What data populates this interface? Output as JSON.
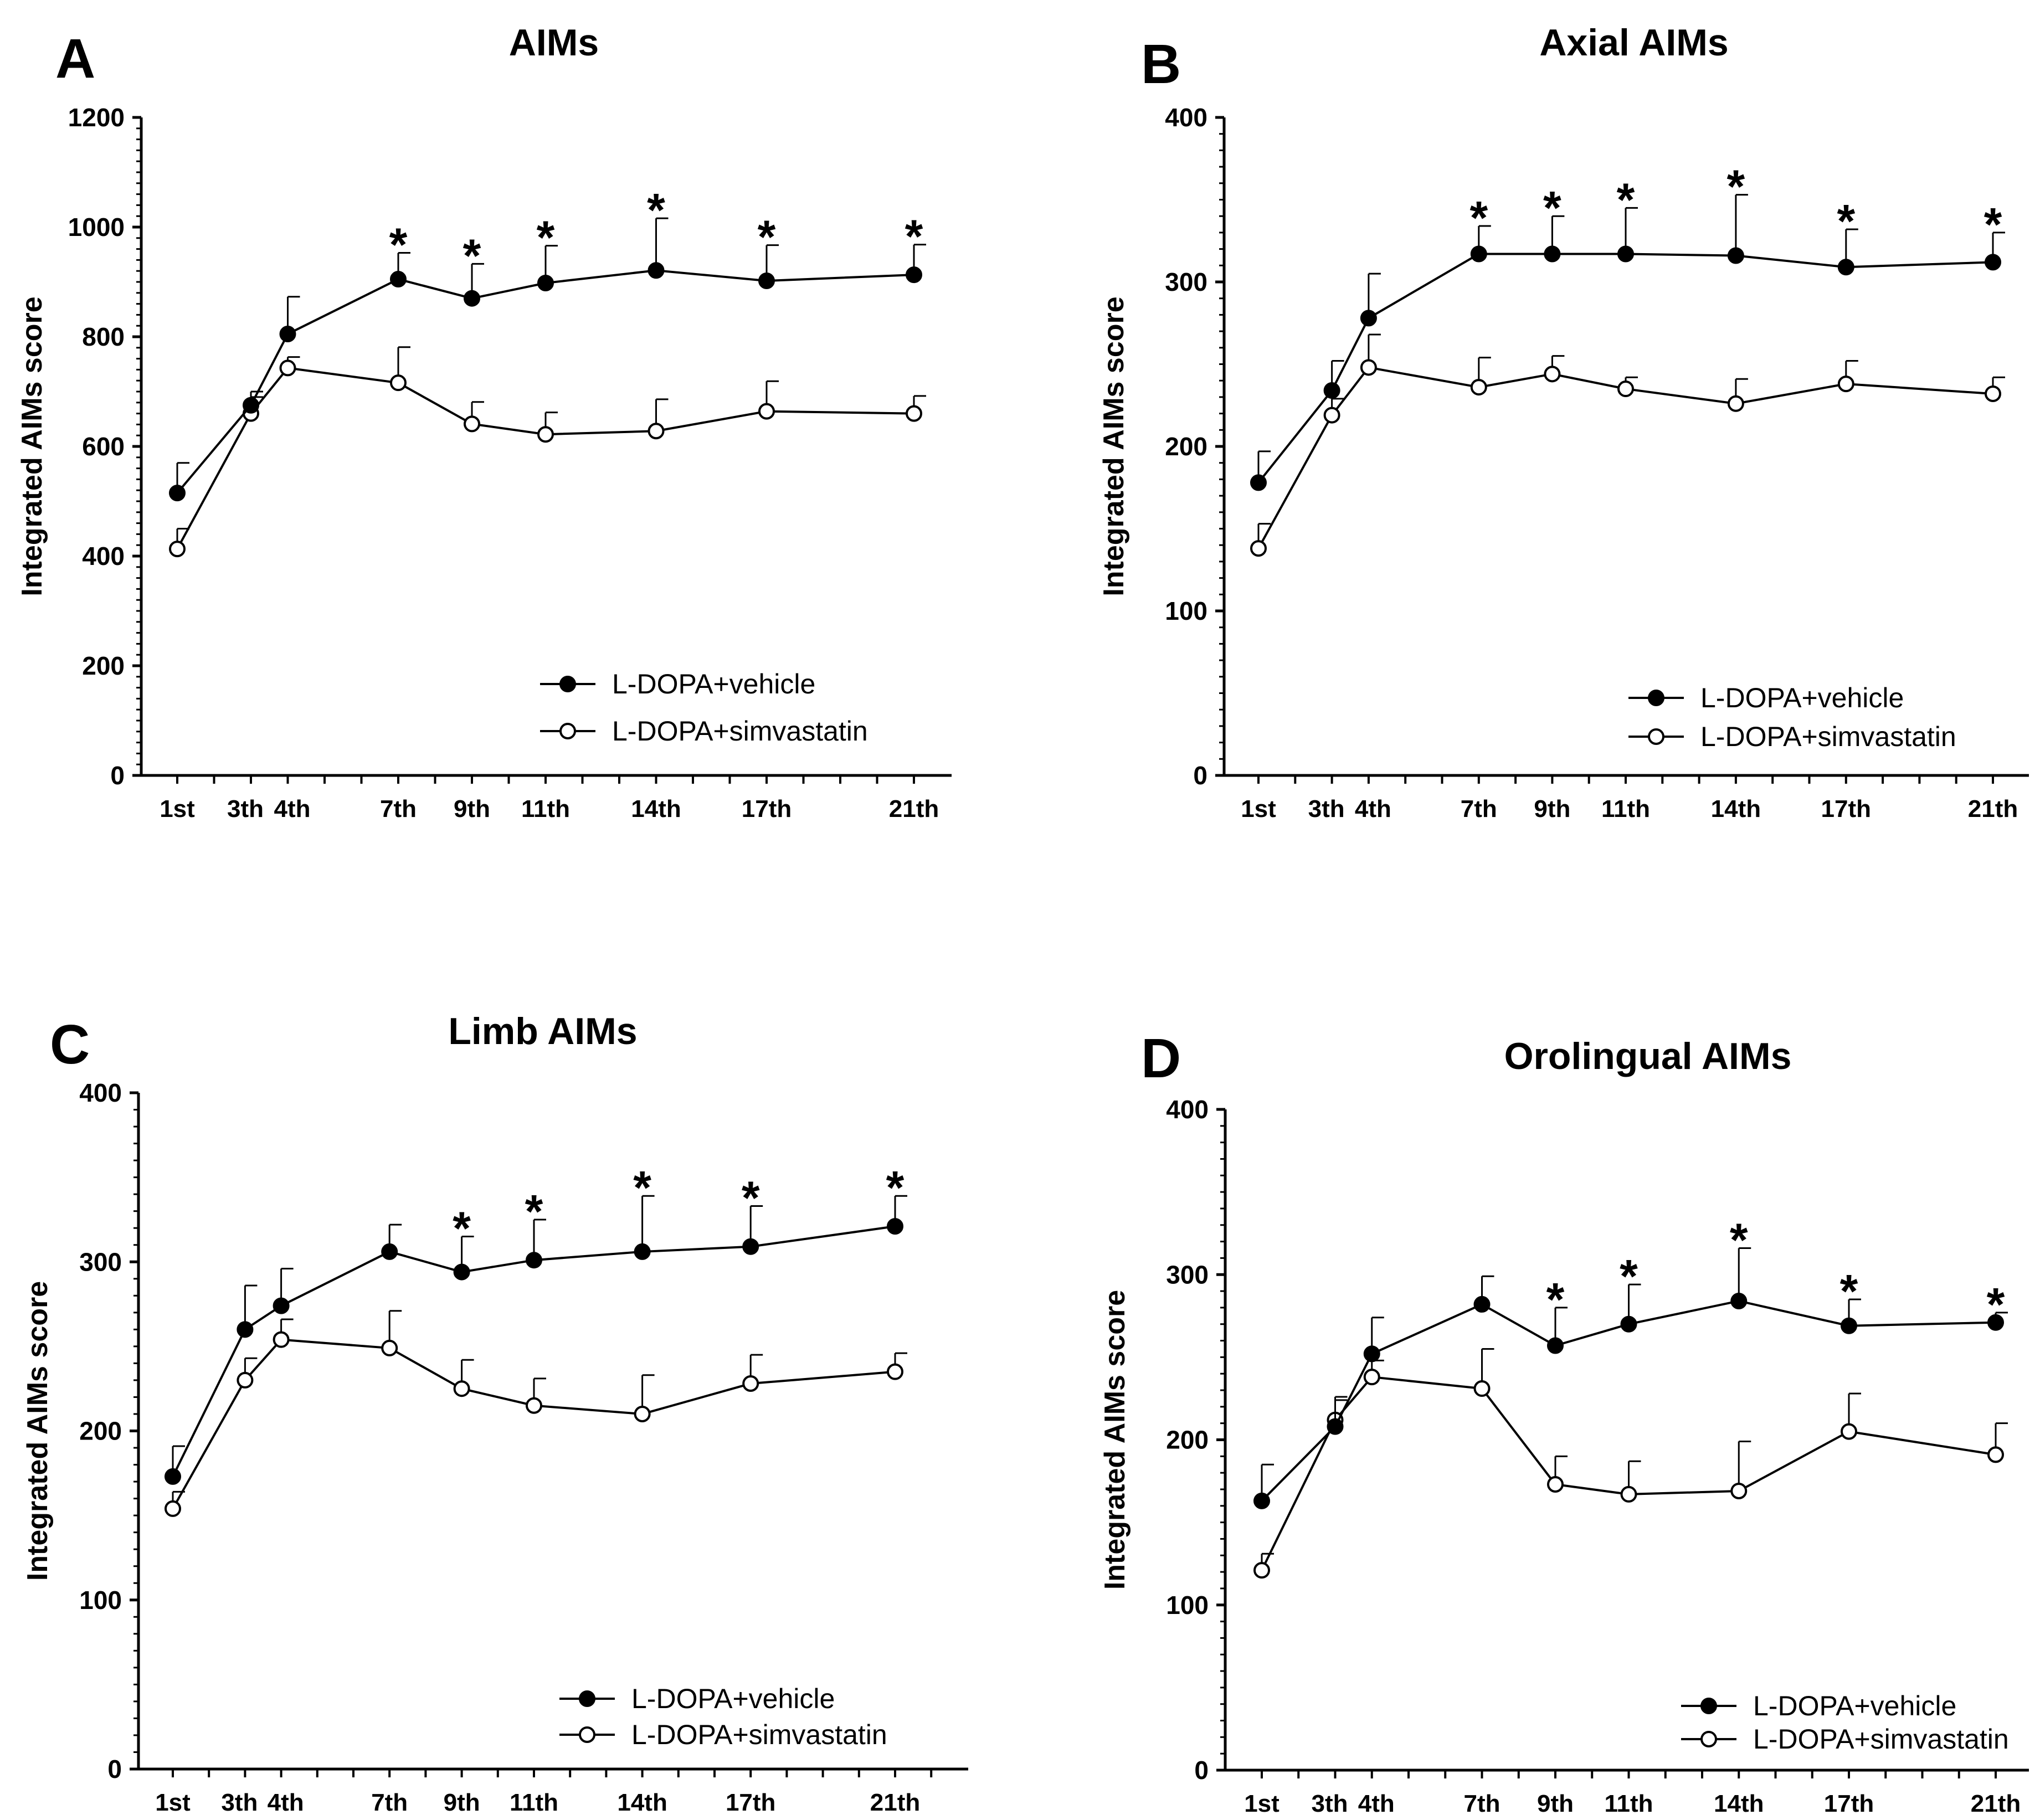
{
  "figure": {
    "panels": [
      "A",
      "B",
      "C",
      "D"
    ]
  },
  "chart_data": [
    {
      "panel": "A",
      "type": "line",
      "title": "AIMs",
      "ylabel": "Integrated AIMs score",
      "xlabel": "",
      "ylim": [
        0,
        1200
      ],
      "yticks": [
        0,
        200,
        400,
        600,
        800,
        1000,
        1200
      ],
      "x": [
        1,
        3,
        4,
        7,
        9,
        11,
        14,
        17,
        21
      ],
      "xtick_labels": [
        "1st",
        "3th",
        "4th",
        "7th",
        "9th",
        "11th",
        "14th",
        "17th",
        "21th"
      ],
      "legend_position": "bottom-right",
      "series": [
        {
          "name": "L-DOPA+vehicle",
          "marker": "filled",
          "values": [
            515,
            675,
            805,
            905,
            870,
            898,
            921,
            902,
            913
          ],
          "errors": [
            55,
            25,
            68,
            48,
            63,
            68,
            95,
            65,
            55
          ]
        },
        {
          "name": "L-DOPA+simvastatin",
          "marker": "open",
          "values": [
            413,
            660,
            743,
            716,
            641,
            622,
            628,
            664,
            660
          ],
          "errors": [
            37,
            30,
            20,
            65,
            40,
            40,
            58,
            55,
            32
          ]
        }
      ],
      "significance": [
        false,
        false,
        false,
        true,
        true,
        true,
        true,
        true,
        true
      ],
      "annotation": "*"
    },
    {
      "panel": "B",
      "type": "line",
      "title": "Axial AIMs",
      "ylabel": "Integrated AIMs score",
      "xlabel": "",
      "ylim": [
        0,
        400
      ],
      "yticks": [
        0,
        100,
        200,
        300,
        400
      ],
      "x": [
        1,
        3,
        4,
        7,
        9,
        11,
        14,
        17,
        21
      ],
      "xtick_labels": [
        "1st",
        "3th",
        "4th",
        "7th",
        "9th",
        "11th",
        "14th",
        "17th",
        "21th"
      ],
      "legend_position": "bottom-right",
      "series": [
        {
          "name": "L-DOPA+vehicle",
          "marker": "filled",
          "values": [
            178,
            234,
            278,
            317,
            317,
            317,
            316,
            309,
            312
          ],
          "errors": [
            19,
            18,
            27,
            17,
            23,
            28,
            37,
            23,
            18
          ]
        },
        {
          "name": "L-DOPA+simvastatin",
          "marker": "open",
          "values": [
            138,
            219,
            248,
            236,
            244,
            235,
            226,
            238,
            232
          ],
          "errors": [
            15,
            10,
            20,
            18,
            11,
            7,
            15,
            14,
            10
          ]
        }
      ],
      "significance": [
        false,
        false,
        false,
        true,
        true,
        true,
        true,
        true,
        true
      ],
      "annotation": "*"
    },
    {
      "panel": "C",
      "type": "line",
      "title": "Limb AIMs",
      "ylabel": "Integrated AIMs score",
      "xlabel": "",
      "ylim": [
        0,
        400
      ],
      "yticks": [
        0,
        100,
        200,
        300,
        400
      ],
      "x": [
        1,
        3,
        4,
        7,
        9,
        11,
        14,
        17,
        21
      ],
      "xtick_labels": [
        "1st",
        "3th",
        "4th",
        "7th",
        "9th",
        "11th",
        "14th",
        "17th",
        "21th"
      ],
      "legend_position": "bottom-right",
      "series": [
        {
          "name": "L-DOPA+vehicle",
          "marker": "filled",
          "values": [
            173,
            260,
            274,
            306,
            294,
            301,
            306,
            309,
            321
          ],
          "errors": [
            18,
            26,
            22,
            16,
            21,
            24,
            33,
            24,
            18
          ]
        },
        {
          "name": "L-DOPA+simvastatin",
          "marker": "open",
          "values": [
            154,
            230,
            254,
            249,
            225,
            215,
            210,
            228,
            235
          ],
          "errors": [
            10,
            13,
            12,
            22,
            17,
            16,
            23,
            17,
            11
          ]
        }
      ],
      "significance": [
        false,
        false,
        false,
        false,
        true,
        true,
        true,
        true,
        true
      ],
      "annotation": "*"
    },
    {
      "panel": "D",
      "type": "line",
      "title": "Orolingual AIMs",
      "ylabel": "Integrated AIMs score",
      "xlabel": "",
      "ylim": [
        0,
        400
      ],
      "yticks": [
        0,
        100,
        200,
        300,
        400
      ],
      "x": [
        1,
        3,
        4,
        7,
        9,
        11,
        14,
        17,
        21
      ],
      "xtick_labels": [
        "1st",
        "3th",
        "4th",
        "7th",
        "9th",
        "11th",
        "14th",
        "17th",
        "21th"
      ],
      "legend_position": "bottom-right",
      "series": [
        {
          "name": "L-DOPA+vehicle",
          "marker": "filled",
          "values": [
            163,
            208,
            252,
            282,
            257,
            270,
            284,
            269,
            271
          ],
          "errors": [
            22,
            18,
            22,
            17,
            23,
            24,
            32,
            16,
            6
          ]
        },
        {
          "name": "L-DOPA+simvastatin",
          "marker": "open",
          "values": [
            121,
            212,
            238,
            231,
            173,
            167,
            169,
            205,
            191
          ],
          "errors": [
            10,
            12,
            10,
            24,
            17,
            20,
            30,
            23,
            19
          ]
        }
      ],
      "significance": [
        false,
        false,
        false,
        false,
        true,
        true,
        true,
        true,
        true
      ],
      "annotation": "*"
    }
  ]
}
